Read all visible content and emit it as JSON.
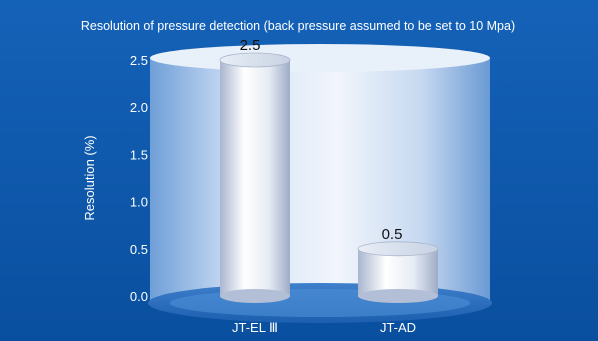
{
  "chart_data": {
    "type": "bar",
    "title": "Resolution of pressure detection (back pressure assumed to be set to 10 Mpa)",
    "ylabel": "Resolution (%)",
    "xlabel": "",
    "categories": [
      "JT-EL Ⅲ",
      "JT-AD"
    ],
    "values": [
      2.5,
      0.5
    ],
    "data_labels": [
      "2.5",
      "0.5"
    ],
    "ylim": [
      0,
      2.5
    ],
    "yticks": [
      "0.0",
      "0.5",
      "1.0",
      "1.5",
      "2.0",
      "2.5"
    ],
    "grid": false,
    "legend": "none"
  },
  "colors": {
    "background": "#0b55a8",
    "backdrop_light": "#dfe9f7",
    "bar_light": "#ffffff",
    "bar_dark": "#b8c4da",
    "tick_text": "#ffffff",
    "label_text": "#111111"
  }
}
